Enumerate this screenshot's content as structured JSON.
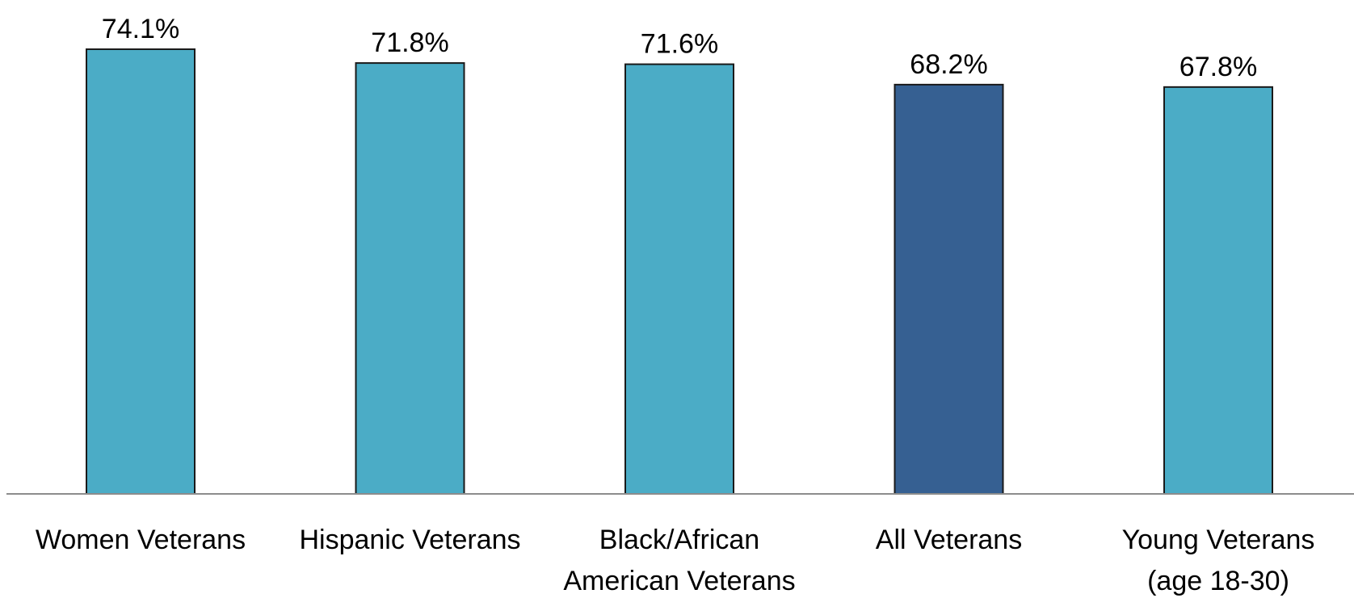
{
  "chart_data": {
    "type": "bar",
    "categories": [
      [
        "Women Veterans"
      ],
      [
        "Hispanic Veterans"
      ],
      [
        "Black/African",
        "American Veterans"
      ],
      [
        "All Veterans"
      ],
      [
        "Young Veterans",
        "(age 18-30)"
      ]
    ],
    "values": [
      74.1,
      71.8,
      71.6,
      68.2,
      67.8
    ],
    "value_labels": [
      "74.1%",
      "71.8%",
      "71.6%",
      "68.2%",
      "67.8%"
    ],
    "bar_colors": [
      "#4BACC6",
      "#4BACC6",
      "#4BACC6",
      "#366092",
      "#4BACC6"
    ],
    "title": "",
    "xlabel": "",
    "ylabel": "",
    "ylim": [
      0,
      74.1
    ],
    "grid": false,
    "legend": "none"
  }
}
